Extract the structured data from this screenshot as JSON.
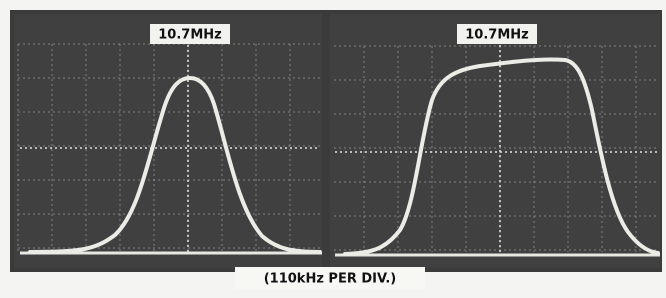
{
  "screens": [
    {
      "label": "10.7MHz"
    },
    {
      "label": "10.7MHz"
    }
  ],
  "caption": "(110kHz PER DIV.)"
}
